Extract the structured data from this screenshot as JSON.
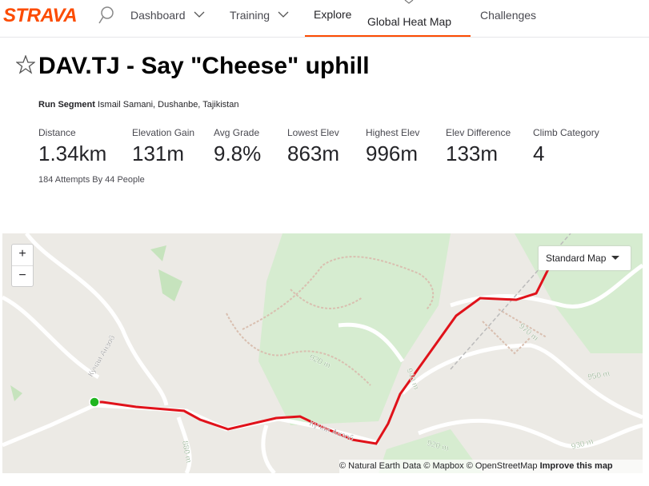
{
  "nav": {
    "logo": "STRAVA",
    "items": [
      "Dashboard",
      "Training",
      "Explore",
      "Global Heat Map",
      "Challenges"
    ]
  },
  "segment": {
    "title": "DAV.TJ - Say \"Cheese\" uphill",
    "type": "Run Segment",
    "location": "Ismail Samani, Dushanbe, Tajikistan",
    "stats": [
      {
        "label": "Distance",
        "value": "1.34km"
      },
      {
        "label": "Elevation Gain",
        "value": "131m"
      },
      {
        "label": "Avg Grade",
        "value": "9.8%"
      },
      {
        "label": "Lowest Elev",
        "value": "863m"
      },
      {
        "label": "Highest Elev",
        "value": "996m"
      },
      {
        "label": "Elev Difference",
        "value": "133m"
      },
      {
        "label": "Climb Category",
        "value": "4"
      }
    ],
    "attempts": "184 Attempts By 44 People"
  },
  "map": {
    "zoom_in": "+",
    "zoom_out": "−",
    "style": "Standard Map",
    "labels": [
      "920 m",
      "940 m",
      "970 m",
      "950 m",
      "930 m",
      "880 m",
      "920 m",
      "Кӯчаи Анзоб",
      "Кӯчаи Анзоб"
    ],
    "attribution": [
      "© Natural Earth Data",
      "© Mapbox",
      "© OpenStreetMap",
      "Improve this map"
    ]
  }
}
